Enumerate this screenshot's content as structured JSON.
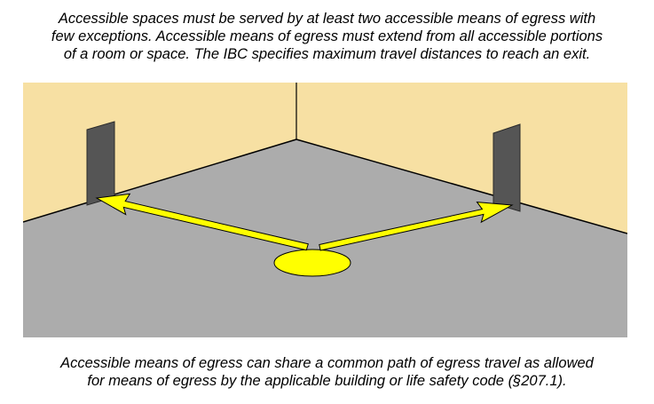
{
  "captions": {
    "top": {
      "lines": [
        "Accessible spaces must be served by at least two accessible means of egress with",
        "few exceptions. Accessible means of egress must extend from all accessible portions",
        "of a room or space.  The IBC specifies maximum travel distances to reach an exit."
      ]
    },
    "bottom": {
      "lines": [
        "Accessible means of egress can share a common path of egress travel as allowed",
        "for means of egress by the applicable building or life safety code (§207.1)."
      ]
    }
  },
  "colors": {
    "wall": "#f7e0a3",
    "floor": "#acacac",
    "door": "#555555",
    "arrow": "#ffff00",
    "outline": "#000000"
  }
}
